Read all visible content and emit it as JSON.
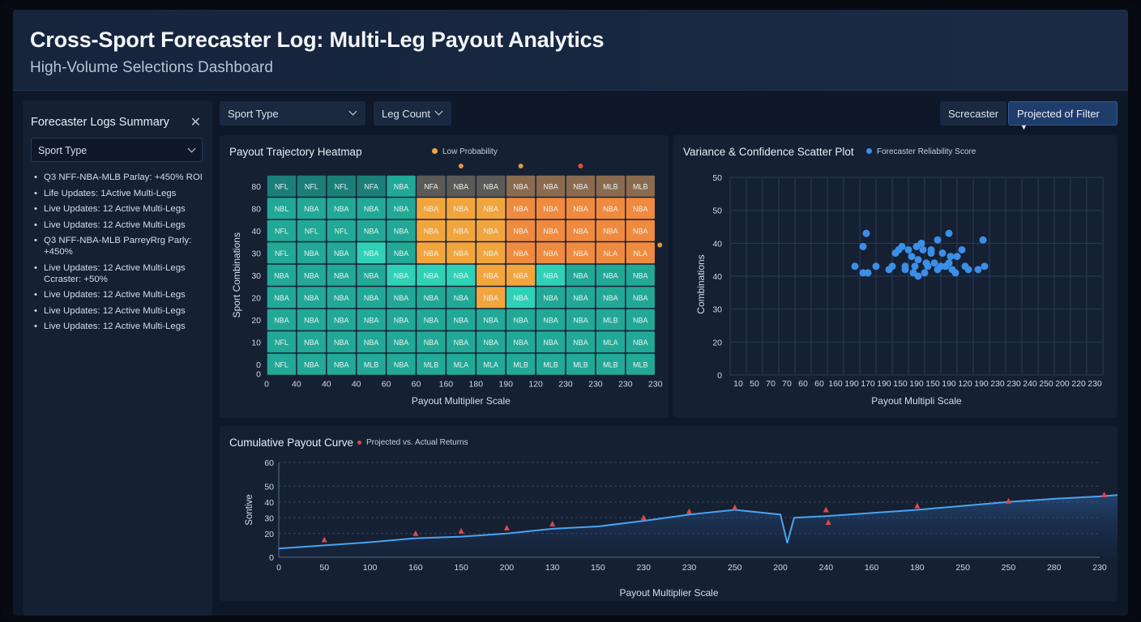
{
  "header": {
    "title": "Cross-Sport Forecaster Log: Multi-Leg Payout Analytics",
    "subtitle": "High-Volume Selections Dashboard"
  },
  "sidebar": {
    "title": "Forecaster Logs Summary",
    "close_icon": "close-icon",
    "select_value": "Sport Type",
    "items": [
      "Q3 NFF-NBA-MLB Parlay: +450% ROI",
      "Life Updates: 1Active Multi-Legs",
      "Live Updates: 12 Active Multi-Legs",
      "Live Updates: 12 Active Multi-Legs",
      "Q3 NFF-NBA-MLB ParreyRrg Parly: +450%",
      "Live Updates: 12 Active Multi-Legs Ccraster: +50%",
      "Live Updates: 12 Active Multi-Legs",
      "Live Updates: 12 Active Multi-Legs",
      "Live Updates: 12 Active Multi-Legs"
    ]
  },
  "toolbar": {
    "sport_type": "Sport Type",
    "leg_count": "Leg Count",
    "screcaster": "Screcaster",
    "projected_filter": "Projected of Filter"
  },
  "colors": {
    "teal_dark": "#1b7f78",
    "teal": "#22a896",
    "teal_light": "#2fd1b6",
    "orange": "#f08a3e",
    "amber": "#f3a53d",
    "gold": "#e0ac46",
    "brown": "#8b6b50",
    "gray": "#5c5a57",
    "scatter_blue": "#3b8fe8",
    "line_blue": "#4aa3f0",
    "marker_red": "#e0474b"
  },
  "heatmap": {
    "title": "Payout Trajectory Heatmap",
    "legend": "Low Probability",
    "xlabel": "Payout Multiplier Scale",
    "ylabel": "Sport Combinations"
  },
  "scatter": {
    "title": "Variance & Confidence Scatter Plot",
    "legend": "Forecaster Reliability Score",
    "xlabel": "Payout Multipli Scale",
    "ylabel": "Combinations"
  },
  "curve": {
    "title": "Cumulative Payout Curve",
    "legend": "Projected vs. Actual Returns",
    "xlabel": "Payout Multiplier Scale",
    "ylabel": "Sontive"
  },
  "chart_data": [
    {
      "type": "heatmap",
      "title": "Payout Trajectory Heatmap",
      "xlabel": "Payout Multiplier Scale",
      "ylabel": "Sport Combinations",
      "legend": [
        "Low Probability"
      ],
      "x_ticks": [
        "0",
        "40",
        "40",
        "40",
        "60",
        "60",
        "160",
        "180",
        "190",
        "120",
        "230",
        "230",
        "230",
        "230"
      ],
      "y_ticks": [
        "80",
        "80",
        "40",
        "30",
        "30",
        "20",
        "20",
        "10",
        "0",
        "0"
      ],
      "rows": [
        {
          "labels": [
            "NFL",
            "NFL",
            "NFL",
            "NFA",
            "NBA",
            "NFA",
            "NBA",
            "NBA",
            "NBA",
            "NBA",
            "NBA",
            "MLB",
            "MLB"
          ],
          "colors": [
            "teal_dark",
            "teal_dark",
            "teal_dark",
            "teal_dark",
            "teal",
            "gray",
            "gray",
            "gray",
            "brown",
            "brown",
            "brown",
            "brown",
            "brown"
          ]
        },
        {
          "labels": [
            "NBL",
            "NBA",
            "NBA",
            "NBA",
            "NBA",
            "NBA",
            "NBA",
            "NBA",
            "NBA",
            "NBA",
            "NBA",
            "NBA",
            "NBA"
          ],
          "colors": [
            "teal",
            "teal",
            "teal",
            "teal",
            "teal",
            "amber",
            "amber",
            "amber",
            "orange",
            "orange",
            "orange",
            "orange",
            "orange"
          ]
        },
        {
          "labels": [
            "NFL",
            "NFL",
            "NFL",
            "NBA",
            "NBA",
            "NBA",
            "NBA",
            "NBA",
            "NBA",
            "NBA",
            "NBA",
            "NBA",
            "NBA"
          ],
          "colors": [
            "teal",
            "teal",
            "teal",
            "teal",
            "teal",
            "amber",
            "amber",
            "amber",
            "orange",
            "orange",
            "orange",
            "orange",
            "orange"
          ]
        },
        {
          "labels": [
            "NFL",
            "NBA",
            "NBA",
            "NBA",
            "NBA",
            "NBA",
            "NBA",
            "NBA",
            "NBA",
            "NBA",
            "NBA",
            "NLA",
            "NLA"
          ],
          "colors": [
            "teal",
            "teal",
            "teal",
            "teal_light",
            "teal",
            "amber",
            "amber",
            "amber",
            "orange",
            "orange",
            "orange",
            "orange",
            "orange"
          ]
        },
        {
          "labels": [
            "NBA",
            "NBA",
            "NBA",
            "NBA",
            "NBA",
            "NBA",
            "NBA",
            "NBA",
            "NBA",
            "NBA",
            "NBA",
            "NBA",
            "NBA"
          ],
          "colors": [
            "teal",
            "teal",
            "teal",
            "teal",
            "teal_light",
            "teal_light",
            "teal_light",
            "amber",
            "amber",
            "teal_light",
            "teal",
            "teal",
            "teal"
          ]
        },
        {
          "labels": [
            "NBA",
            "NBA",
            "NBA",
            "NBA",
            "NBA",
            "NBA",
            "NBA",
            "NBA",
            "NBA",
            "NBA",
            "NBA",
            "NBA",
            "NBA"
          ],
          "colors": [
            "teal",
            "teal",
            "teal",
            "teal",
            "teal",
            "teal",
            "teal",
            "amber",
            "teal_light",
            "teal",
            "teal",
            "teal",
            "teal"
          ]
        },
        {
          "labels": [
            "NBA",
            "NBA",
            "NBA",
            "NBA",
            "NBA",
            "NBA",
            "NBA",
            "NBA",
            "NBA",
            "NBA",
            "NBA",
            "MLB",
            "NBA"
          ],
          "colors": [
            "teal",
            "teal",
            "teal",
            "teal",
            "teal",
            "teal",
            "teal",
            "teal",
            "teal",
            "teal",
            "teal",
            "teal",
            "teal"
          ]
        },
        {
          "labels": [
            "NFL",
            "NBA",
            "NBA",
            "NBA",
            "NBA",
            "NBA",
            "NBA",
            "NBA",
            "NBA",
            "NBA",
            "NBA",
            "MLA",
            "NBA"
          ],
          "colors": [
            "teal",
            "teal",
            "teal",
            "teal",
            "teal",
            "teal",
            "teal",
            "teal",
            "teal",
            "teal",
            "teal",
            "teal",
            "teal"
          ]
        },
        {
          "labels": [
            "NFL",
            "NBA",
            "NBA",
            "MLB",
            "NBA",
            "MLB",
            "MLA",
            "MLA",
            "MLB",
            "MLB",
            "MLB",
            "MLB",
            "MLB"
          ],
          "colors": [
            "teal",
            "teal",
            "teal",
            "teal",
            "teal",
            "teal",
            "teal",
            "teal",
            "teal",
            "teal",
            "teal",
            "teal",
            "teal"
          ]
        }
      ]
    },
    {
      "type": "scatter",
      "title": "Variance & Confidence Scatter Plot",
      "xlabel": "Payout Multipli Scale",
      "ylabel": "Combinations",
      "legend": [
        "Forecaster Reliability Score"
      ],
      "x_ticks": [
        "10",
        "50",
        "70",
        "70",
        "60",
        "60",
        "160",
        "190",
        "170",
        "190",
        "150",
        "190",
        "150",
        "190",
        "120",
        "190",
        "230",
        "230",
        "240",
        "250",
        "200",
        "220",
        "230"
      ],
      "y_ticks": [
        "0",
        "20",
        "30",
        "40",
        "40",
        "50",
        "50"
      ],
      "grid": true,
      "points": [
        [
          7.7,
          3.3
        ],
        [
          8.2,
          3.1
        ],
        [
          8.5,
          3.1
        ],
        [
          8.2,
          3.9
        ],
        [
          9.0,
          3.3
        ],
        [
          8.4,
          4.3
        ],
        [
          9.8,
          3.2
        ],
        [
          10.0,
          3.3
        ],
        [
          10.2,
          3.7
        ],
        [
          10.4,
          3.8
        ],
        [
          10.6,
          3.9
        ],
        [
          10.8,
          3.2
        ],
        [
          11.0,
          3.8
        ],
        [
          11.2,
          3.6
        ],
        [
          11.4,
          3.3
        ],
        [
          11.5,
          3.9
        ],
        [
          11.6,
          3.5
        ],
        [
          11.8,
          4.0
        ],
        [
          12.0,
          3.1
        ],
        [
          12.2,
          3.3
        ],
        [
          12.4,
          3.7
        ],
        [
          12.6,
          3.4
        ],
        [
          12.8,
          3.2
        ],
        [
          13.0,
          3.3
        ],
        [
          13.1,
          3.7
        ],
        [
          13.3,
          3.3
        ],
        [
          13.5,
          3.4
        ],
        [
          13.7,
          3.2
        ],
        [
          13.6,
          3.6
        ],
        [
          13.9,
          3.1
        ],
        [
          14.0,
          3.6
        ],
        [
          14.3,
          3.8
        ],
        [
          14.5,
          3.3
        ],
        [
          13.5,
          4.3
        ],
        [
          12.8,
          4.1
        ],
        [
          12.1,
          3.4
        ],
        [
          11.6,
          3.0
        ],
        [
          11.3,
          3.1
        ],
        [
          10.8,
          3.3
        ],
        [
          15.6,
          4.1
        ],
        [
          15.7,
          3.3
        ],
        [
          15.3,
          3.2
        ],
        [
          14.7,
          3.2
        ],
        [
          12.4,
          3.8
        ],
        [
          11.9,
          3.8
        ]
      ]
    },
    {
      "type": "area",
      "title": "Cumulative Payout Curve",
      "xlabel": "Payout Multiplier Scale",
      "ylabel": "Sontive",
      "legend": [
        "Projected vs. Actual Returns"
      ],
      "x_ticks": [
        "0",
        "50",
        "100",
        "160",
        "150",
        "200",
        "130",
        "150",
        "230",
        "230",
        "250",
        "200",
        "240",
        "160",
        "180",
        "250",
        "250",
        "280",
        "230"
      ],
      "y_ticks": [
        "0",
        "20",
        "30",
        "40",
        "50",
        "60"
      ],
      "ylim": [
        0,
        60
      ],
      "series": [
        {
          "values": [
            [
              0,
              5.5
            ],
            [
              1,
              7.5
            ],
            [
              2,
              9.5
            ],
            [
              3,
              12
            ],
            [
              4,
              13
            ],
            [
              5,
              15
            ],
            [
              6,
              18
            ],
            [
              7,
              19.5
            ],
            [
              8,
              23
            ],
            [
              9,
              27
            ],
            [
              10,
              30
            ],
            [
              11,
              27
            ],
            [
              11.15,
              9
            ],
            [
              11.3,
              25
            ],
            [
              12,
              26
            ],
            [
              13,
              28
            ],
            [
              14,
              30
            ],
            [
              15,
              32.5
            ],
            [
              16,
              35
            ],
            [
              17,
              37
            ],
            [
              18,
              38.5
            ],
            [
              18.45,
              39.5
            ],
            [
              18.55,
              17
            ],
            [
              18.7,
              37.5
            ],
            [
              19,
              38
            ],
            [
              19.3,
              38.5
            ]
          ]
        },
        {
          "values": [
            [
              1,
              11
            ],
            [
              3,
              15
            ],
            [
              4,
              16.5
            ],
            [
              5,
              18.5
            ],
            [
              6,
              21
            ],
            [
              8,
              25
            ],
            [
              9,
              29
            ],
            [
              10,
              31.5
            ],
            [
              12,
              30
            ],
            [
              12.05,
              22
            ],
            [
              14,
              32.5
            ],
            [
              16,
              35.5
            ],
            [
              18.1,
              39.5
            ]
          ]
        }
      ]
    }
  ]
}
